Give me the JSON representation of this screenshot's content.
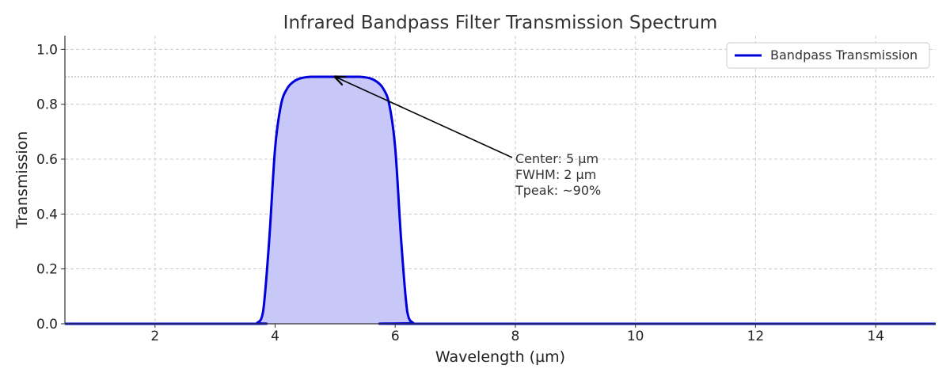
{
  "chart_data": {
    "type": "line",
    "title": "Infrared Bandpass Filter Transmission Spectrum",
    "xlabel": "Wavelength (µm)",
    "ylabel": "Transmission",
    "xlim": [
      0.5,
      15
    ],
    "ylim": [
      0,
      1.05
    ],
    "xticks": [
      2,
      4,
      6,
      8,
      10,
      12,
      14
    ],
    "yticks": [
      0.0,
      0.2,
      0.4,
      0.6,
      0.8,
      1.0
    ],
    "xtick_labels": [
      "2",
      "4",
      "6",
      "8",
      "10",
      "12",
      "14"
    ],
    "ytick_labels": [
      "0.0",
      "0.2",
      "0.4",
      "0.6",
      "0.8",
      "1.0"
    ],
    "grid": true,
    "legend_position": "top-right",
    "reference_line": {
      "y": 0.9,
      "style": "dotted",
      "color": "#aaaaaa"
    },
    "series": [
      {
        "name": "Bandpass Transmission",
        "color": "#0000dd",
        "fill_color": "#c8c8f8",
        "fill": true,
        "x": [
          0.5,
          3.6,
          3.7,
          3.8,
          3.9,
          4.0,
          4.1,
          4.2,
          4.3,
          4.4,
          4.5,
          4.6,
          4.8,
          5.0,
          5.2,
          5.4,
          5.5,
          5.6,
          5.7,
          5.8,
          5.9,
          6.0,
          6.1,
          6.2,
          6.3,
          6.4,
          15.0
        ],
        "y": [
          0.0,
          0.0,
          0.003,
          0.045,
          0.3,
          0.64,
          0.8,
          0.857,
          0.881,
          0.893,
          0.898,
          0.9,
          0.9,
          0.9,
          0.9,
          0.9,
          0.898,
          0.893,
          0.881,
          0.857,
          0.8,
          0.64,
          0.3,
          0.045,
          0.003,
          0.0,
          0.0
        ]
      }
    ],
    "annotations": [
      {
        "lines": [
          "Center: 5 µm",
          "FWHM: 2 µm",
          "Tpeak: ~90%"
        ],
        "text_at": [
          8.0,
          0.6
        ],
        "arrow_to": [
          5.0,
          0.9
        ]
      }
    ]
  }
}
